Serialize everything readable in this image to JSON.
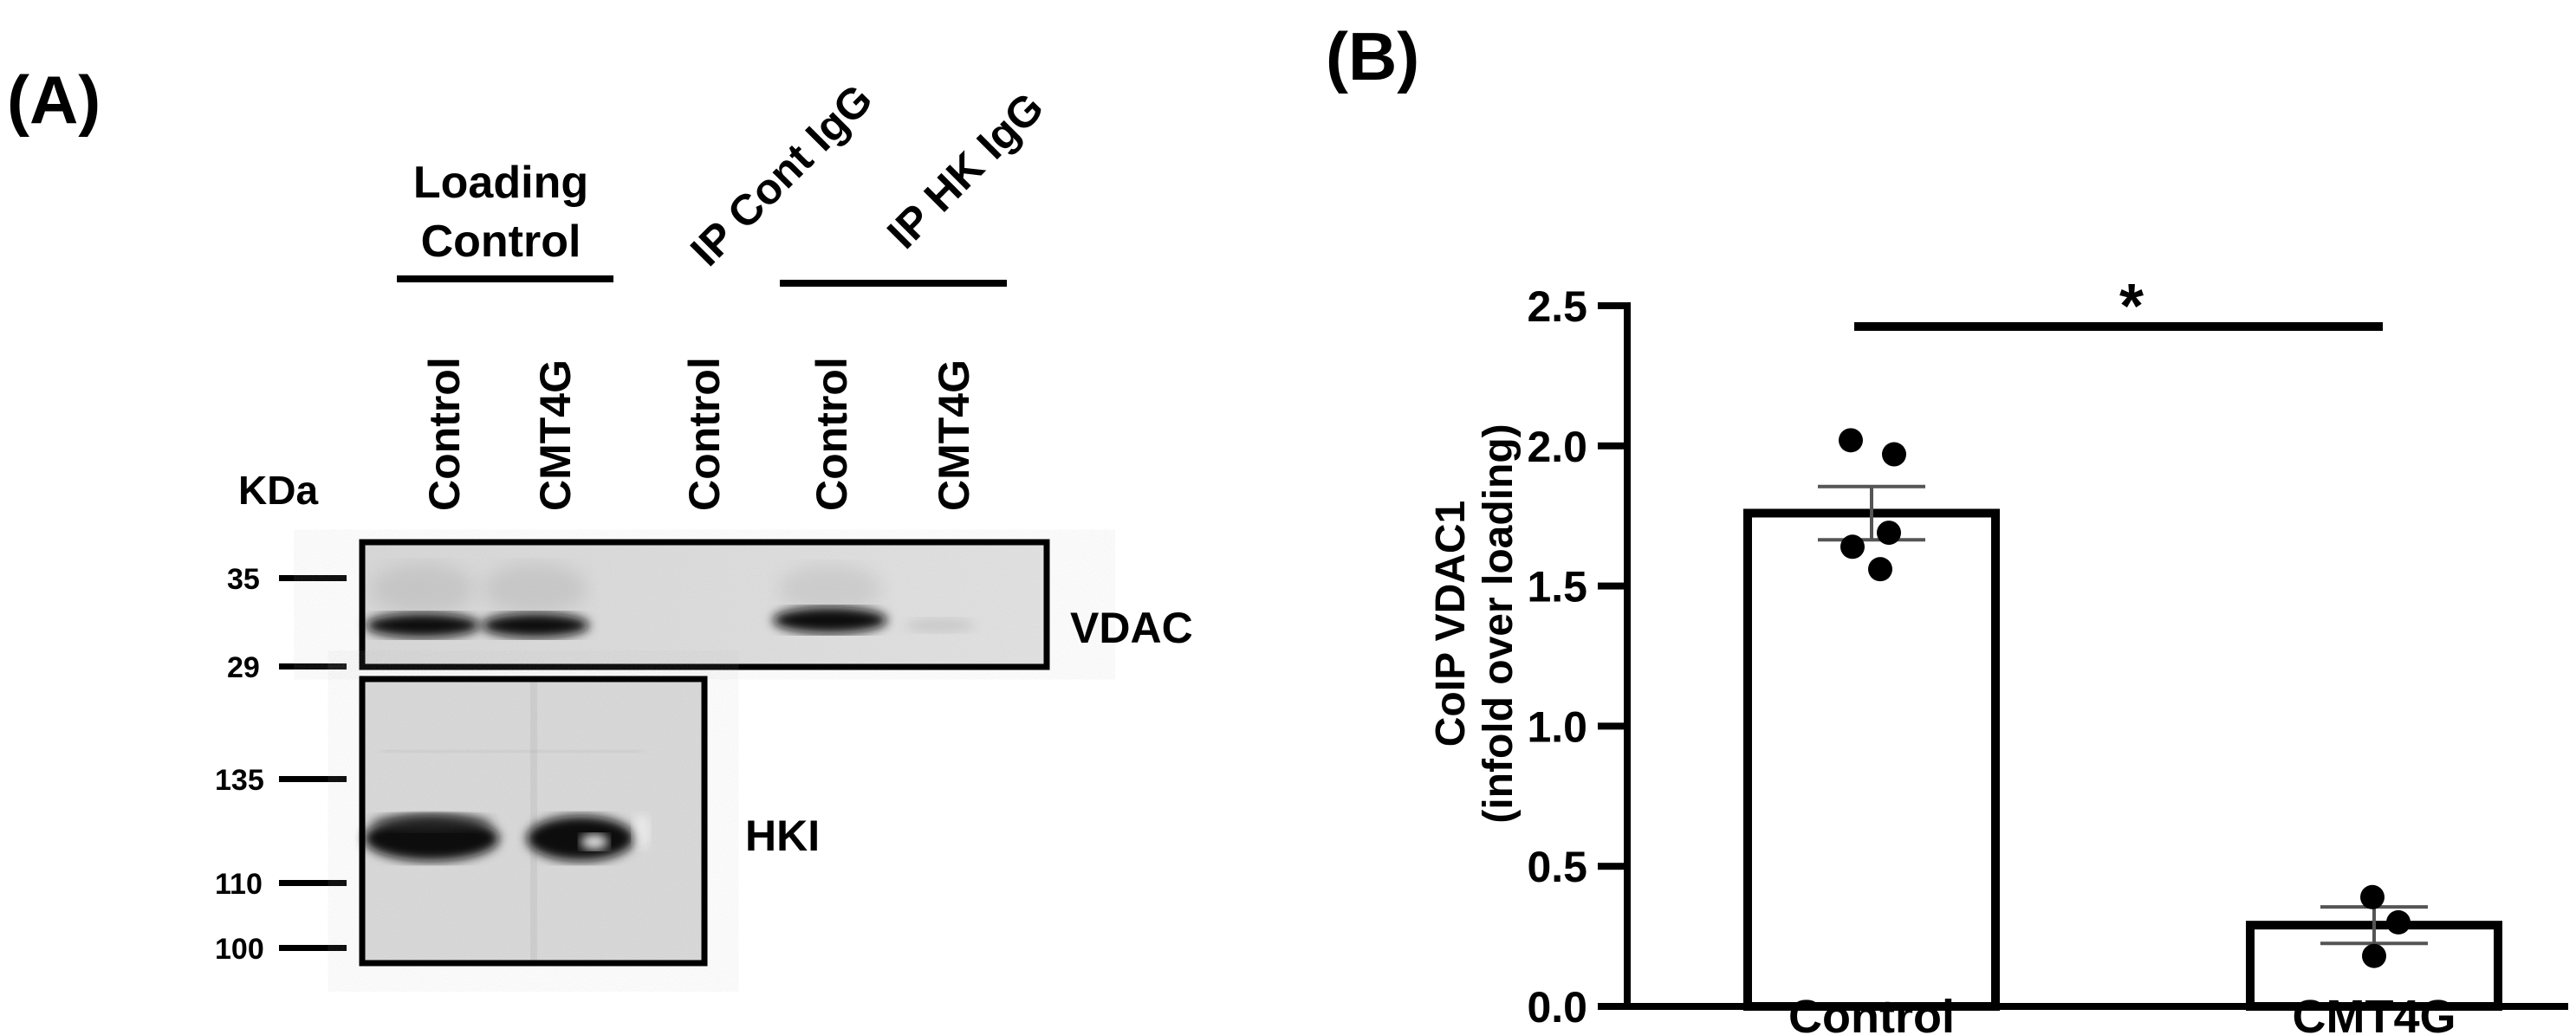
{
  "panel_a": {
    "label": "(A)",
    "groups": {
      "loading_control": "Loading\nControl",
      "loading_control_lines": [
        "Loading",
        "Control"
      ],
      "ip_cont_igg": "IP Cont IgG",
      "ip_hk_igg": "IP HK IgG"
    },
    "lanes": [
      "Control",
      "CMT4G",
      "Control",
      "Control",
      "CMT4G"
    ],
    "kda_label": "KDa",
    "vdac_markers": [
      "35",
      "29"
    ],
    "hki_markers": [
      "135",
      "110",
      "100"
    ],
    "bands": {
      "vdac": "VDAC",
      "hki": "HKI"
    }
  },
  "panel_b": {
    "label": "(B)",
    "significance": "*"
  },
  "chart_data": {
    "type": "bar",
    "categories": [
      "Control",
      "CMT4G"
    ],
    "values": [
      1.76,
      0.29
    ],
    "errors": [
      0.095,
      0.065
    ],
    "points": [
      [
        2.02,
        1.97,
        1.69,
        1.64,
        1.56
      ],
      [
        0.39,
        0.3,
        0.18
      ]
    ],
    "ylabel_lines": [
      "CoIP VDAC1",
      "(infold over loading)"
    ],
    "ylabel": "CoIP VDAC1 (infold over loading)",
    "yticks": [
      "0.0",
      "0.5",
      "1.0",
      "1.5",
      "2.0",
      "2.5"
    ],
    "ylim": [
      0,
      2.5
    ],
    "grid": false,
    "legend": "none"
  }
}
